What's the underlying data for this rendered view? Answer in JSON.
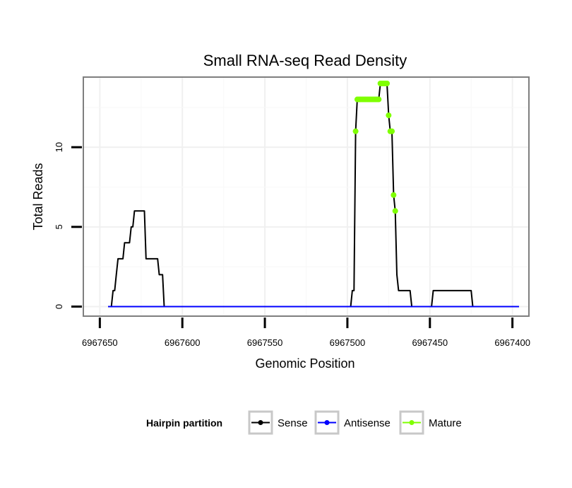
{
  "chart_data": {
    "type": "line",
    "title": "Small RNA-seq Read Density",
    "xlabel": "Genomic Position",
    "ylabel": "Total Reads",
    "x_reversed": true,
    "xlim": [
      6967660,
      6967390
    ],
    "ylim": [
      -0.6,
      14.4
    ],
    "x_ticks": [
      6967650,
      6967600,
      6967550,
      6967500,
      6967450,
      6967400
    ],
    "x_tick_labels": [
      "6967650",
      "6967600",
      "6967550",
      "6967500",
      "6967450",
      "6967400"
    ],
    "y_ticks": [
      0,
      5,
      10
    ],
    "y_tick_labels": [
      "0",
      "5",
      "10"
    ],
    "grid": true,
    "legend": {
      "title": "Hairpin partition",
      "position": "bottom",
      "entries": [
        "Sense",
        "Antisense",
        "Mature"
      ]
    },
    "series": [
      {
        "name": "Sense",
        "color": "#000000",
        "points": [
          [
            6967645,
            0
          ],
          [
            6967643,
            0
          ],
          [
            6967642,
            1
          ],
          [
            6967641,
            1
          ],
          [
            6967640,
            2
          ],
          [
            6967639,
            3
          ],
          [
            6967636,
            3
          ],
          [
            6967635,
            4
          ],
          [
            6967632,
            4
          ],
          [
            6967631,
            5
          ],
          [
            6967630,
            5
          ],
          [
            6967629,
            6
          ],
          [
            6967623,
            6
          ],
          [
            6967622,
            3
          ],
          [
            6967615,
            3
          ],
          [
            6967614,
            2
          ],
          [
            6967612,
            2
          ],
          [
            6967611,
            0
          ],
          [
            6967498,
            0
          ],
          [
            6967497,
            1
          ],
          [
            6967496,
            1
          ],
          [
            6967495,
            11
          ],
          [
            6967494,
            13
          ],
          [
            6967481,
            13
          ],
          [
            6967480,
            14
          ],
          [
            6967476,
            14
          ],
          [
            6967475,
            12
          ],
          [
            6967474,
            11
          ],
          [
            6967473,
            11
          ],
          [
            6967472,
            7
          ],
          [
            6967471,
            6
          ],
          [
            6967470,
            2
          ],
          [
            6967469,
            1
          ],
          [
            6967462,
            1
          ],
          [
            6967461,
            0
          ],
          [
            6967449,
            0
          ],
          [
            6967448,
            1
          ],
          [
            6967425,
            1
          ],
          [
            6967424,
            0
          ],
          [
            6967396,
            0
          ]
        ]
      },
      {
        "name": "Antisense",
        "color": "#0000ff",
        "points": [
          [
            6967645,
            0
          ],
          [
            6967396,
            0
          ]
        ]
      },
      {
        "name": "Mature",
        "color": "#7fff00",
        "points": [
          [
            6967495,
            11
          ],
          [
            6967494,
            13
          ],
          [
            6967493,
            13
          ],
          [
            6967492,
            13
          ],
          [
            6967491,
            13
          ],
          [
            6967490,
            13
          ],
          [
            6967489,
            13
          ],
          [
            6967488,
            13
          ],
          [
            6967487,
            13
          ],
          [
            6967486,
            13
          ],
          [
            6967485,
            13
          ],
          [
            6967484,
            13
          ],
          [
            6967483,
            13
          ],
          [
            6967482,
            13
          ],
          [
            6967481,
            13
          ],
          [
            6967480,
            14
          ],
          [
            6967479,
            14
          ],
          [
            6967478,
            14
          ],
          [
            6967477,
            14
          ],
          [
            6967476,
            14
          ],
          [
            6967475,
            12
          ],
          [
            6967474,
            11
          ],
          [
            6967473,
            11
          ],
          [
            6967472,
            7
          ],
          [
            6967471,
            6
          ]
        ]
      }
    ]
  }
}
